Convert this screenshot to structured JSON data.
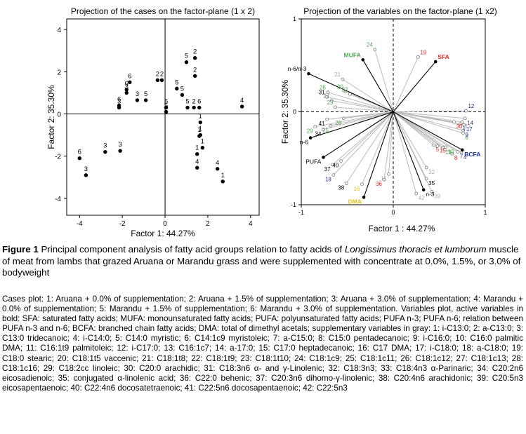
{
  "figure": {
    "number_label": "Figure 1",
    "caption_pre": "Principal component analysis of fatty acid groups relation to fatty acids of ",
    "caption_italic": "Longissimus thoracis et lumborum",
    "caption_post": " muscle of meat from lambs that grazed Aruana or Marandu grass and were supplemented with concentrate at 0.0%, 1.5%, or 3.0% of bodyweight",
    "notes": "Cases plot: 1: Aruana + 0.0% of supplementation; 2: Aruana + 1.5% of supplementation; 3: Aruana + 3.0% of supplementation; 4: Marandu + 0.0% of supplementation; 5: Marandu + 1.5% of supplementation; 6: Marandu + 3.0% of supplementation. Variables plot, active variables in bold: SFA: saturated fatty acids; MUFA: monounsaturated fatty acids; PUFA: polyunsaturated fatty acids; PUFA n-3; PUFA n-6; relation between PUFA n-3 and n-6; BCFA: branched chain fatty acids; DMA: total of dimethyl acetals; supplementary variables in gray: 1: i-C13:0; 2: a-C13:0; 3: C13:0 tridecanoic; 4: i-C14:0; 5: C14:0 myristic; 6: C14:1c9 myristoleic; 7: a-C15:0; 8: C15:0 pentadecanoic; 9: i-C16:0; 10: C16:0 palmitic DMA; 11: C16:1t9 palmitoleic; 12: i-C17:0; 13: C16:1c7; 14: a-17:0; 15: C17:0 heptadecanoic; 16: C17 DMA; 17: i-C18:0; 18: a-C18:0; 19: C18:0 stearic; 20: C18:1t5 vaccenic; 21: C18:1t8; 22: C18:1t9; 23: C18:1t10; 24: C18:1c9; 25: C18:1c11; 26: C18:1c12; 27: C18:1c13; 28: C18:1c16; 29: C18:2cc linoleic; 30: C20:0 arachidic; 31: C18:3n6 α- and γ-Linolenic; 32: C18:3n3; 33: C18:4n3 α-Parinaric; 34: C20:2n6 eicosadienoic; 35: conjugated α-linolenic acid; 36: C22:0 behenic; 37: C20:3n6 dihomo-γ-linolenic; 38: C20:4n6 arachidonic; 39: C20:5n3 eicosapentaenoic; 40: C22:4n6 docosatetraenoic; 41: C22:5n6 docosapentaenoic; 42: C22:5n3"
  },
  "chart_data": [
    {
      "type": "scatter",
      "title": "Projection of the cases on the factor-plane (1 x 2)",
      "xlabel": "Factor 1: 44.27%",
      "ylabel": "Factor 2: 35.30%",
      "xlim": [
        -4.6,
        4.4
      ],
      "ylim": [
        -4.8,
        4.5
      ],
      "xticks": [
        -4,
        -2,
        0,
        2,
        4
      ],
      "yticks": [
        -4,
        -2,
        0,
        2,
        4
      ],
      "points": [
        {
          "label": "6",
          "x": -4.0,
          "y": -2.1
        },
        {
          "label": "3",
          "x": -3.7,
          "y": -2.9
        },
        {
          "label": "3",
          "x": -2.8,
          "y": -1.8
        },
        {
          "label": "3",
          "x": -2.1,
          "y": -1.75
        },
        {
          "label": "3",
          "x": -2.15,
          "y": 0.3
        },
        {
          "label": "6",
          "x": -2.15,
          "y": 0.4
        },
        {
          "label": "3",
          "x": -1.8,
          "y": 1.0
        },
        {
          "label": "6",
          "x": -1.8,
          "y": 1.15
        },
        {
          "label": "6",
          "x": -1.65,
          "y": 1.5
        },
        {
          "label": "3",
          "x": -1.3,
          "y": 0.65
        },
        {
          "label": "5",
          "x": -0.9,
          "y": 0.65
        },
        {
          "label": "2",
          "x": -0.35,
          "y": 1.6
        },
        {
          "label": "2",
          "x": -0.15,
          "y": 1.6
        },
        {
          "label": "5",
          "x": 0.05,
          "y": 0.3
        },
        {
          "label": "5",
          "x": 0.05,
          "y": 0.1
        },
        {
          "label": "5",
          "x": 0.55,
          "y": 1.2
        },
        {
          "label": "5",
          "x": 0.8,
          "y": 0.9
        },
        {
          "label": "5",
          "x": 1.0,
          "y": 2.45
        },
        {
          "label": "2",
          "x": 1.4,
          "y": 2.65
        },
        {
          "label": "2",
          "x": 1.4,
          "y": 1.8
        },
        {
          "label": "5",
          "x": 1.05,
          "y": 0.3
        },
        {
          "label": "2",
          "x": 1.35,
          "y": 0.3
        },
        {
          "label": "6",
          "x": 1.6,
          "y": 0.3
        },
        {
          "label": "1",
          "x": 1.65,
          "y": -0.4
        },
        {
          "label": "1",
          "x": 1.65,
          "y": -1.0
        },
        {
          "label": "1",
          "x": 1.6,
          "y": -1.05
        },
        {
          "label": "1",
          "x": 1.75,
          "y": -1.6
        },
        {
          "label": "1",
          "x": 1.5,
          "y": -1.9
        },
        {
          "label": "4",
          "x": 1.5,
          "y": -2.55
        },
        {
          "label": "4",
          "x": 2.45,
          "y": -2.6
        },
        {
          "label": "1",
          "x": 2.7,
          "y": -3.2
        },
        {
          "label": "4",
          "x": 3.6,
          "y": 0.35
        }
      ]
    },
    {
      "type": "scatter",
      "title": "Projection of the variables on the factor-plane (1 x2)",
      "xlabel": "Factor 1 : 44.27%",
      "ylabel": "Factor 2: 35.30%",
      "xlim": [
        -1,
        1
      ],
      "ylim": [
        -1,
        1
      ],
      "xticks": [
        -1,
        0,
        1
      ],
      "yticks": [
        -1,
        0,
        1
      ],
      "active_color": "#000000",
      "supplementary_color": "#bbbbbb",
      "variables": [
        {
          "label": "SFA",
          "x": 0.46,
          "y": 0.54,
          "color": "#e8251f",
          "active": true
        },
        {
          "label": "MUFA",
          "x": -0.33,
          "y": 0.56,
          "color": "#4fa64f",
          "active": true
        },
        {
          "label": "n-6/n-3",
          "x": -0.92,
          "y": 0.41,
          "color": "#000000",
          "active": true
        },
        {
          "label": "PUFA",
          "x": -0.76,
          "y": -0.49,
          "color": "#000000",
          "active": true
        },
        {
          "label": "BCFA",
          "x": 0.75,
          "y": -0.41,
          "color": "#1d2f9c",
          "active": true
        },
        {
          "label": "DMA",
          "x": -0.32,
          "y": -0.92,
          "color": "#e0c020",
          "active": true
        },
        {
          "label": "n-6",
          "x": -0.9,
          "y": -0.28,
          "color": "#000000",
          "active": true
        },
        {
          "label": "n-3",
          "x": 0.33,
          "y": -0.84,
          "color": "#000000",
          "active": true
        },
        {
          "label": "1",
          "x": 0.73,
          "y": -0.13,
          "color": "#1d2f9c",
          "active": false
        },
        {
          "label": "5",
          "x": 0.44,
          "y": -0.36,
          "color": "#e8251f",
          "active": false
        },
        {
          "label": "4",
          "x": 0.74,
          "y": -0.44,
          "color": "#1d2f9c",
          "active": false
        },
        {
          "label": "6",
          "x": 0.76,
          "y": -0.23,
          "color": "#4fa64f",
          "active": false
        },
        {
          "label": "7",
          "x": 0.7,
          "y": -0.43,
          "color": "#1d2f9c",
          "active": false
        },
        {
          "label": "8",
          "x": 0.64,
          "y": -0.45,
          "color": "#e8251f",
          "active": false
        },
        {
          "label": "9",
          "x": 0.76,
          "y": -0.2,
          "color": "#1d2f9c",
          "active": false
        },
        {
          "label": "10",
          "x": 0.57,
          "y": -0.38,
          "color": "#4fa64f",
          "active": false
        },
        {
          "label": "11",
          "x": -0.05,
          "y": -0.67,
          "color": "#aaaaaa",
          "active": false
        },
        {
          "label": "12",
          "x": 0.79,
          "y": 0.01,
          "color": "#1d2f9c",
          "active": false
        },
        {
          "label": "13",
          "x": 0.54,
          "y": -0.39,
          "color": "#4fa64f",
          "active": false
        },
        {
          "label": "14",
          "x": 0.78,
          "y": -0.07,
          "color": "#1d2f9c",
          "active": false
        },
        {
          "label": "15",
          "x": 0.48,
          "y": -0.37,
          "color": "#e8251f",
          "active": false
        },
        {
          "label": "16",
          "x": -0.34,
          "y": -0.78,
          "color": "#e0c020",
          "active": false
        },
        {
          "label": "17",
          "x": 0.77,
          "y": -0.14,
          "color": "#1d2f9c",
          "active": false
        },
        {
          "label": "18",
          "x": -0.65,
          "y": -0.68,
          "color": "#1d2f9c",
          "active": false
        },
        {
          "label": "19",
          "x": 0.27,
          "y": 0.59,
          "color": "#e8251f",
          "active": false
        },
        {
          "label": "20",
          "x": -0.52,
          "y": 0.22,
          "color": "#4fa64f",
          "active": false
        },
        {
          "label": "21",
          "x": -0.55,
          "y": 0.35,
          "color": "#aaaaaa",
          "active": false
        },
        {
          "label": "22",
          "x": -0.47,
          "y": 0.19,
          "color": "#4fa64f",
          "active": false
        },
        {
          "label": "23",
          "x": -0.63,
          "y": 0.05,
          "color": "#4fa64f",
          "active": false
        },
        {
          "label": "24",
          "x": -0.2,
          "y": 0.67,
          "color": "#4fa64f",
          "active": false
        },
        {
          "label": "25",
          "x": -0.68,
          "y": -0.15,
          "color": "#4fa64f",
          "active": false
        },
        {
          "label": "26",
          "x": -0.71,
          "y": 0.21,
          "color": "#4fa64f",
          "active": false
        },
        {
          "label": "27",
          "x": -0.67,
          "y": 0.12,
          "color": "#4fa64f",
          "active": false
        },
        {
          "label": "28",
          "x": -0.54,
          "y": -0.07,
          "color": "#4fa64f",
          "active": false
        },
        {
          "label": "29",
          "x": -0.85,
          "y": -0.16,
          "color": "#4fa64f",
          "active": false
        },
        {
          "label": "30",
          "x": 0.66,
          "y": -0.11,
          "color": "#e8251f",
          "active": false
        },
        {
          "label": "31",
          "x": -0.72,
          "y": 0.16,
          "color": "#000000",
          "active": false
        },
        {
          "label": "32",
          "x": 0.36,
          "y": -0.6,
          "color": "#aaaaaa",
          "active": false
        },
        {
          "label": "33",
          "x": 0.75,
          "y": -0.11,
          "color": "#aaaaaa",
          "active": false
        },
        {
          "label": "34",
          "x": -0.76,
          "y": -0.19,
          "color": "#000000",
          "active": false
        },
        {
          "label": "35",
          "x": 0.36,
          "y": -0.72,
          "color": "#000000",
          "active": false
        },
        {
          "label": "36",
          "x": -0.1,
          "y": -0.73,
          "color": "#e8251f",
          "active": false
        },
        {
          "label": "37",
          "x": -0.66,
          "y": -0.57,
          "color": "#000000",
          "active": false
        },
        {
          "label": "38",
          "x": -0.51,
          "y": -0.77,
          "color": "#000000",
          "active": false
        },
        {
          "label": "39",
          "x": 0.42,
          "y": -0.86,
          "color": "#aaaaaa",
          "active": false
        },
        {
          "label": "40",
          "x": -0.57,
          "y": -0.53,
          "color": "#000000",
          "active": false
        },
        {
          "label": "41",
          "x": -0.72,
          "y": -0.08,
          "color": "#000000",
          "active": false
        },
        {
          "label": "42",
          "x": 0.25,
          "y": -0.88,
          "color": "#aaaaaa",
          "active": false
        }
      ]
    }
  ]
}
